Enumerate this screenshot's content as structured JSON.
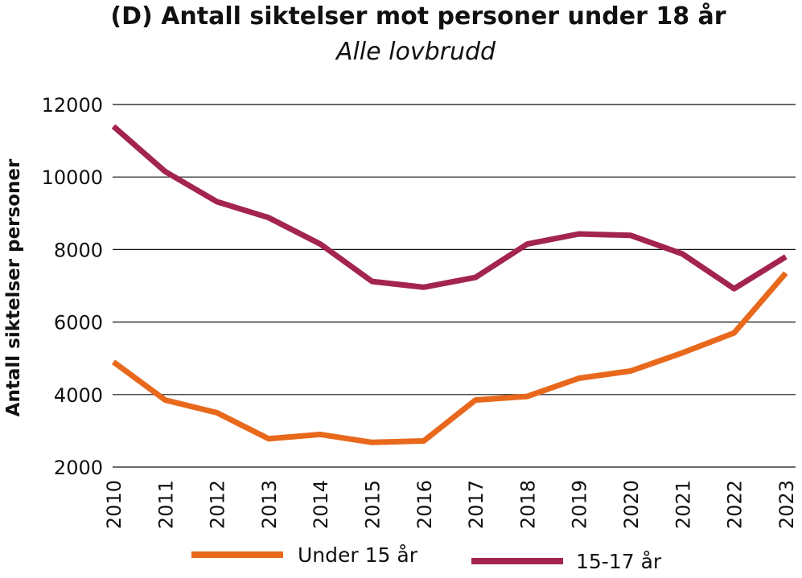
{
  "chart_data": {
    "type": "line",
    "title": "(D) Antall siktelser mot personer under 18 år",
    "subtitle": "Alle lovbrudd",
    "xlabel": "",
    "ylabel": "Antall siktelser personer",
    "categories": [
      "2010",
      "2011",
      "2012",
      "2013",
      "2014",
      "2015",
      "2016",
      "2017",
      "2018",
      "2019",
      "2020",
      "2021",
      "2022",
      "2023"
    ],
    "ylim": [
      2000,
      12000
    ],
    "yticks": [
      2000,
      4000,
      6000,
      8000,
      10000,
      12000
    ],
    "grid": true,
    "legend_position": "bottom",
    "series": [
      {
        "name": "Under 15 år",
        "color": "#e8681c",
        "values": [
          4900,
          3850,
          3500,
          2780,
          2900,
          2680,
          2720,
          3850,
          3950,
          4450,
          4650,
          5150,
          5700,
          7350
        ]
      },
      {
        "name": "15-17 år",
        "color": "#a3244f",
        "values": [
          11400,
          10150,
          9320,
          8880,
          8150,
          7120,
          6960,
          7230,
          8150,
          8430,
          8390,
          7880,
          6920,
          7800
        ]
      }
    ]
  }
}
